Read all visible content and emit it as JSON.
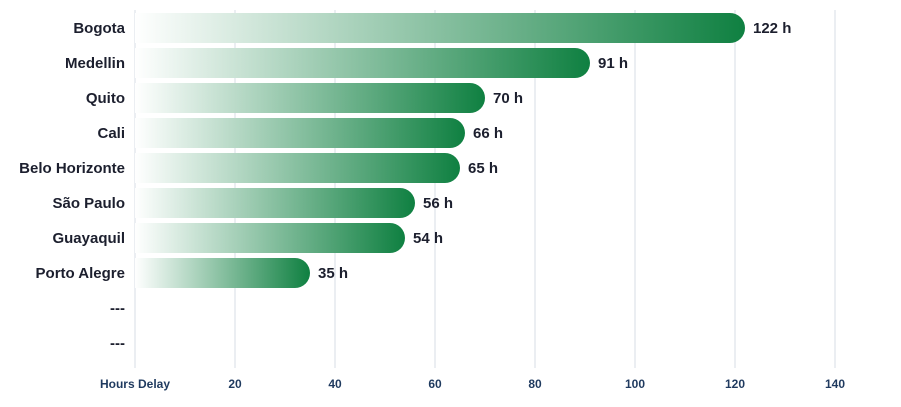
{
  "chart_data": {
    "type": "bar",
    "orientation": "horizontal",
    "categories": [
      "Bogota",
      "Medellin",
      "Quito",
      "Cali",
      "Belo Horizonte",
      "São Paulo",
      "Guayaquil",
      "Porto Alegre",
      "---",
      "---"
    ],
    "values": [
      122,
      91,
      70,
      66,
      65,
      56,
      54,
      35,
      null,
      null
    ],
    "value_labels": [
      "122 h",
      "91 h",
      "70 h",
      "66 h",
      "65 h",
      "56 h",
      "54 h",
      "35 h",
      "",
      ""
    ],
    "xlabel": "Hours Delay",
    "xlim": [
      0,
      140
    ],
    "xticks": [
      20,
      40,
      60,
      80,
      100,
      120,
      140
    ],
    "grid": true,
    "colors": {
      "bar_start": "#ffffff",
      "bar_end": "#0f8041",
      "grid": "#d7dce4",
      "text": "#1c1f2e",
      "axis_text": "#1f3a5f"
    }
  }
}
